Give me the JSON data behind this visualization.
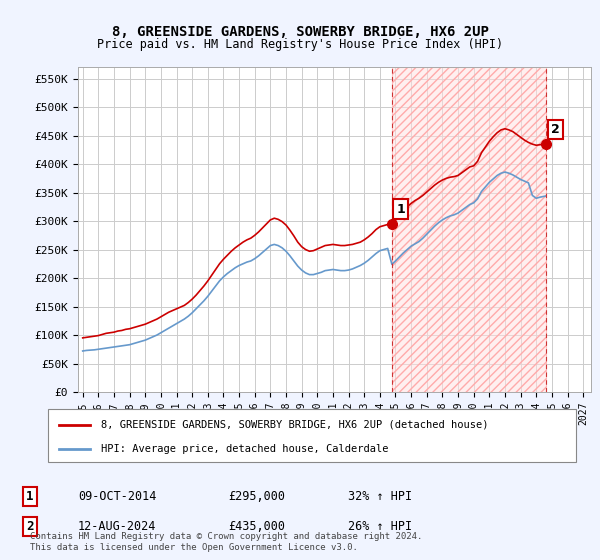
{
  "title": "8, GREENSIDE GARDENS, SOWERBY BRIDGE, HX6 2UP",
  "subtitle": "Price paid vs. HM Land Registry's House Price Index (HPI)",
  "ylabel_ticks": [
    "£0",
    "£50K",
    "£100K",
    "£150K",
    "£200K",
    "£250K",
    "£300K",
    "£350K",
    "£400K",
    "£450K",
    "£500K",
    "£550K"
  ],
  "ytick_vals": [
    0,
    50000,
    100000,
    150000,
    200000,
    250000,
    300000,
    350000,
    400000,
    450000,
    500000,
    550000
  ],
  "ylim": [
    0,
    570000
  ],
  "xlim_start": 1995.0,
  "xlim_end": 2027.5,
  "xtick_labels": [
    "1995",
    "1996",
    "1997",
    "1998",
    "1999",
    "2000",
    "2001",
    "2002",
    "2003",
    "2004",
    "2005",
    "2006",
    "2007",
    "2008",
    "2009",
    "2010",
    "2011",
    "2012",
    "2013",
    "2014",
    "2015",
    "2016",
    "2017",
    "2018",
    "2019",
    "2020",
    "2021",
    "2022",
    "2023",
    "2024",
    "2025",
    "2026",
    "2027"
  ],
  "red_line_color": "#cc0000",
  "blue_line_color": "#6699cc",
  "bg_color": "#f0f4ff",
  "plot_bg": "#ffffff",
  "grid_color": "#cccccc",
  "hatch_color": "#ffcccc",
  "marker1_x": 2014.77,
  "marker1_y": 295000,
  "marker2_x": 2024.62,
  "marker2_y": 435000,
  "dashed_line1_x": 2014.77,
  "dashed_line2_x": 2024.62,
  "legend_red_label": "8, GREENSIDE GARDENS, SOWERBY BRIDGE, HX6 2UP (detached house)",
  "legend_blue_label": "HPI: Average price, detached house, Calderdale",
  "annot1_label": "1",
  "annot2_label": "2",
  "table_row1": [
    "1",
    "09-OCT-2014",
    "£295,000",
    "32% ↑ HPI"
  ],
  "table_row2": [
    "2",
    "12-AUG-2024",
    "£435,000",
    "26% ↑ HPI"
  ],
  "footer": "Contains HM Land Registry data © Crown copyright and database right 2024.\nThis data is licensed under the Open Government Licence v3.0.",
  "red_x": [
    1995.0,
    1995.25,
    1995.5,
    1995.75,
    1996.0,
    1996.25,
    1996.5,
    1996.75,
    1997.0,
    1997.25,
    1997.5,
    1997.75,
    1998.0,
    1998.25,
    1998.5,
    1998.75,
    1999.0,
    1999.25,
    1999.5,
    1999.75,
    2000.0,
    2000.25,
    2000.5,
    2000.75,
    2001.0,
    2001.25,
    2001.5,
    2001.75,
    2002.0,
    2002.25,
    2002.5,
    2002.75,
    2003.0,
    2003.25,
    2003.5,
    2003.75,
    2004.0,
    2004.25,
    2004.5,
    2004.75,
    2005.0,
    2005.25,
    2005.5,
    2005.75,
    2006.0,
    2006.25,
    2006.5,
    2006.75,
    2007.0,
    2007.25,
    2007.5,
    2007.75,
    2008.0,
    2008.25,
    2008.5,
    2008.75,
    2009.0,
    2009.25,
    2009.5,
    2009.75,
    2010.0,
    2010.25,
    2010.5,
    2010.75,
    2011.0,
    2011.25,
    2011.5,
    2011.75,
    2012.0,
    2012.25,
    2012.5,
    2012.75,
    2013.0,
    2013.25,
    2013.5,
    2013.75,
    2014.0,
    2014.25,
    2014.5,
    2014.77,
    2015.0,
    2015.25,
    2015.5,
    2015.75,
    2016.0,
    2016.25,
    2016.5,
    2016.75,
    2017.0,
    2017.25,
    2017.5,
    2017.75,
    2018.0,
    2018.25,
    2018.5,
    2018.75,
    2019.0,
    2019.25,
    2019.5,
    2019.75,
    2020.0,
    2020.25,
    2020.5,
    2020.75,
    2021.0,
    2021.25,
    2021.5,
    2021.75,
    2022.0,
    2022.25,
    2022.5,
    2022.75,
    2023.0,
    2023.25,
    2023.5,
    2023.75,
    2024.0,
    2024.25,
    2024.62
  ],
  "red_y": [
    95000,
    96000,
    97000,
    98000,
    99000,
    101000,
    103000,
    104000,
    105000,
    107000,
    108000,
    110000,
    111000,
    113000,
    115000,
    117000,
    119000,
    122000,
    125000,
    128000,
    132000,
    136000,
    140000,
    143000,
    146000,
    149000,
    152000,
    157000,
    163000,
    170000,
    178000,
    186000,
    195000,
    205000,
    215000,
    225000,
    233000,
    240000,
    247000,
    253000,
    258000,
    263000,
    267000,
    270000,
    275000,
    281000,
    288000,
    295000,
    302000,
    305000,
    303000,
    299000,
    293000,
    284000,
    274000,
    263000,
    255000,
    250000,
    247000,
    248000,
    251000,
    254000,
    257000,
    258000,
    259000,
    258000,
    257000,
    257000,
    258000,
    259000,
    261000,
    263000,
    267000,
    272000,
    278000,
    285000,
    290000,
    292000,
    294000,
    295000,
    302000,
    310000,
    318000,
    325000,
    331000,
    336000,
    340000,
    345000,
    351000,
    357000,
    363000,
    368000,
    372000,
    375000,
    377000,
    378000,
    380000,
    385000,
    390000,
    395000,
    397000,
    405000,
    420000,
    430000,
    440000,
    448000,
    455000,
    460000,
    462000,
    460000,
    457000,
    452000,
    447000,
    442000,
    438000,
    435000,
    433000,
    434000,
    435000
  ],
  "blue_x": [
    1995.0,
    1995.25,
    1995.5,
    1995.75,
    1996.0,
    1996.25,
    1996.5,
    1996.75,
    1997.0,
    1997.25,
    1997.5,
    1997.75,
    1998.0,
    1998.25,
    1998.5,
    1998.75,
    1999.0,
    1999.25,
    1999.5,
    1999.75,
    2000.0,
    2000.25,
    2000.5,
    2000.75,
    2001.0,
    2001.25,
    2001.5,
    2001.75,
    2002.0,
    2002.25,
    2002.5,
    2002.75,
    2003.0,
    2003.25,
    2003.5,
    2003.75,
    2004.0,
    2004.25,
    2004.5,
    2004.75,
    2005.0,
    2005.25,
    2005.5,
    2005.75,
    2006.0,
    2006.25,
    2006.5,
    2006.75,
    2007.0,
    2007.25,
    2007.5,
    2007.75,
    2008.0,
    2008.25,
    2008.5,
    2008.75,
    2009.0,
    2009.25,
    2009.5,
    2009.75,
    2010.0,
    2010.25,
    2010.5,
    2010.75,
    2011.0,
    2011.25,
    2011.5,
    2011.75,
    2012.0,
    2012.25,
    2012.5,
    2012.75,
    2013.0,
    2013.25,
    2013.5,
    2013.75,
    2014.0,
    2014.25,
    2014.5,
    2014.77,
    2015.0,
    2015.25,
    2015.5,
    2015.75,
    2016.0,
    2016.25,
    2016.5,
    2016.75,
    2017.0,
    2017.25,
    2017.5,
    2017.75,
    2018.0,
    2018.25,
    2018.5,
    2018.75,
    2019.0,
    2019.25,
    2019.5,
    2019.75,
    2020.0,
    2020.25,
    2020.5,
    2020.75,
    2021.0,
    2021.25,
    2021.5,
    2021.75,
    2022.0,
    2022.25,
    2022.5,
    2022.75,
    2023.0,
    2023.25,
    2023.5,
    2023.75,
    2024.0,
    2024.25,
    2024.62
  ],
  "blue_y": [
    72000,
    73000,
    73500,
    74000,
    75000,
    76000,
    77000,
    78000,
    79000,
    80000,
    81000,
    82000,
    83000,
    85000,
    87000,
    89000,
    91000,
    94000,
    97000,
    100000,
    104000,
    108000,
    112000,
    116000,
    120000,
    124000,
    128000,
    133000,
    139000,
    146000,
    153000,
    160000,
    168000,
    177000,
    186000,
    195000,
    202000,
    208000,
    213000,
    218000,
    222000,
    225000,
    228000,
    230000,
    234000,
    239000,
    245000,
    251000,
    257000,
    259000,
    257000,
    253000,
    247000,
    239000,
    230000,
    221000,
    214000,
    209000,
    206000,
    206000,
    208000,
    210000,
    213000,
    214000,
    215000,
    214000,
    213000,
    213000,
    214000,
    216000,
    219000,
    222000,
    226000,
    231000,
    237000,
    243000,
    248000,
    250000,
    252000,
    224000,
    230000,
    237000,
    244000,
    250000,
    256000,
    260000,
    264000,
    270000,
    277000,
    284000,
    291000,
    297000,
    302000,
    306000,
    309000,
    311000,
    314000,
    319000,
    324000,
    329000,
    332000,
    339000,
    352000,
    360000,
    368000,
    374000,
    380000,
    384000,
    386000,
    384000,
    381000,
    377000,
    373000,
    370000,
    367000,
    345000,
    340000,
    342000,
    344000
  ]
}
